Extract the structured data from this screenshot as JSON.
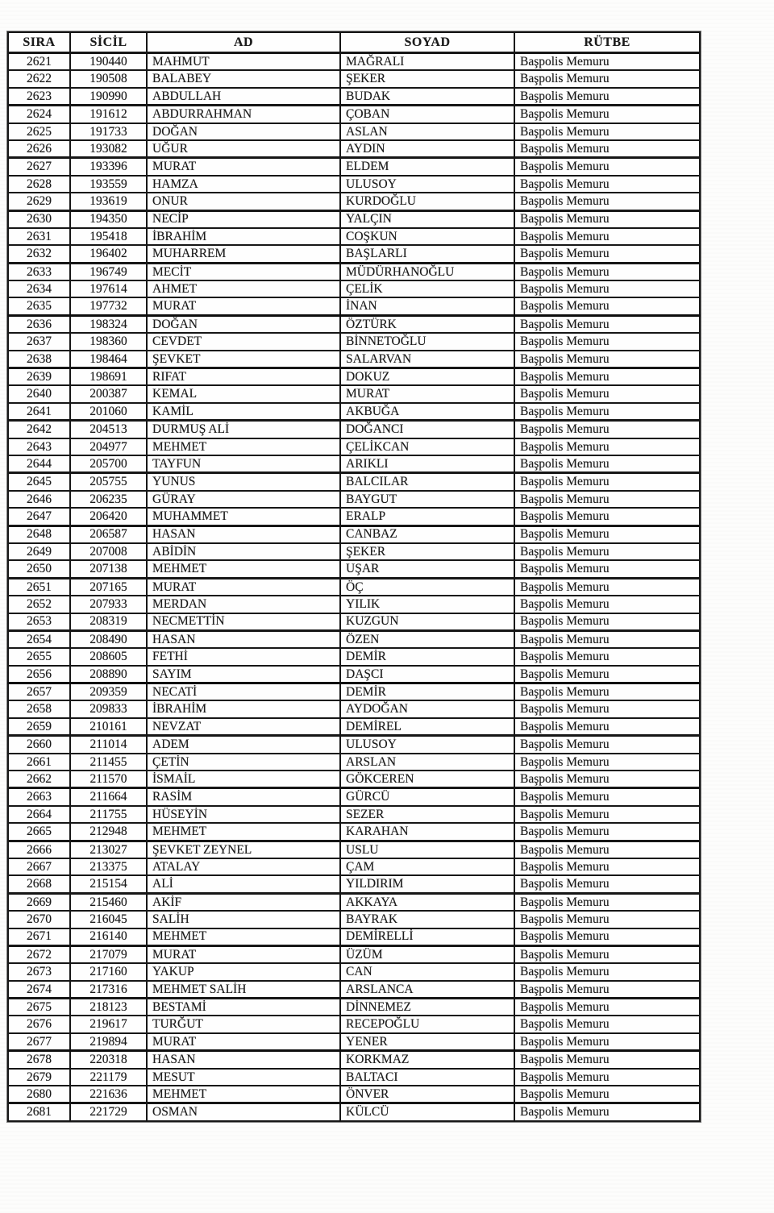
{
  "table": {
    "headers": [
      "SIRA",
      "SİCİL",
      "AD",
      "SOYAD",
      "RÜTBE"
    ],
    "column_keys": [
      "sira",
      "sicil",
      "ad",
      "soyad",
      "rutbe"
    ],
    "rows": [
      [
        "2621",
        "190440",
        "MAHMUT",
        "MAĞRALI",
        "Başpolis Memuru"
      ],
      [
        "2622",
        "190508",
        "BALABEY",
        "ŞEKER",
        "Başpolis Memuru"
      ],
      [
        "2623",
        "190990",
        "ABDULLAH",
        "BUDAK",
        "Başpolis Memuru"
      ],
      [
        "2624",
        "191612",
        "ABDURRAHMAN",
        "ÇOBAN",
        "Başpolis Memuru"
      ],
      [
        "2625",
        "191733",
        "DOĞAN",
        "ASLAN",
        "Başpolis Memuru"
      ],
      [
        "2626",
        "193082",
        "UĞUR",
        "AYDIN",
        "Başpolis Memuru"
      ],
      [
        "2627",
        "193396",
        "MURAT",
        "ELDEM",
        "Başpolis Memuru"
      ],
      [
        "2628",
        "193559",
        "HAMZA",
        "ULUSOY",
        "Başpolis Memuru"
      ],
      [
        "2629",
        "193619",
        "ONUR",
        "KURDOĞLU",
        "Başpolis Memuru"
      ],
      [
        "2630",
        "194350",
        "NECİP",
        "YALÇIN",
        "Başpolis Memuru"
      ],
      [
        "2631",
        "195418",
        "İBRAHİM",
        "COŞKUN",
        "Başpolis Memuru"
      ],
      [
        "2632",
        "196402",
        "MUHARREM",
        "BAŞLARLI",
        "Başpolis Memuru"
      ],
      [
        "2633",
        "196749",
        "MECİT",
        "MÜDÜRHANOĞLU",
        "Başpolis Memuru"
      ],
      [
        "2634",
        "197614",
        "AHMET",
        "ÇELİK",
        "Başpolis Memuru"
      ],
      [
        "2635",
        "197732",
        "MURAT",
        "İNAN",
        "Başpolis Memuru"
      ],
      [
        "2636",
        "198324",
        "DOĞAN",
        "ÖZTÜRK",
        "Başpolis Memuru"
      ],
      [
        "2637",
        "198360",
        "CEVDET",
        "BİNNETOĞLU",
        "Başpolis Memuru"
      ],
      [
        "2638",
        "198464",
        "ŞEVKET",
        "SALARVAN",
        "Başpolis Memuru"
      ],
      [
        "2639",
        "198691",
        "RIFAT",
        "DOKUZ",
        "Başpolis Memuru"
      ],
      [
        "2640",
        "200387",
        "KEMAL",
        "MURAT",
        "Başpolis Memuru"
      ],
      [
        "2641",
        "201060",
        "KAMİL",
        "AKBUĞA",
        "Başpolis Memuru"
      ],
      [
        "2642",
        "204513",
        "DURMUŞ ALİ",
        "DOĞANCI",
        "Başpolis Memuru"
      ],
      [
        "2643",
        "204977",
        "MEHMET",
        "ÇELİKCAN",
        "Başpolis Memuru"
      ],
      [
        "2644",
        "205700",
        "TAYFUN",
        "ARIKLI",
        "Başpolis Memuru"
      ],
      [
        "2645",
        "205755",
        "YUNUS",
        "BALCILAR",
        "Başpolis Memuru"
      ],
      [
        "2646",
        "206235",
        "GÜRAY",
        "BAYGUT",
        "Başpolis Memuru"
      ],
      [
        "2647",
        "206420",
        "MUHAMMET",
        "ERALP",
        "Başpolis Memuru"
      ],
      [
        "2648",
        "206587",
        "HASAN",
        "CANBAZ",
        "Başpolis Memuru"
      ],
      [
        "2649",
        "207008",
        "ABİDİN",
        "ŞEKER",
        "Başpolis Memuru"
      ],
      [
        "2650",
        "207138",
        "MEHMET",
        "UŞAR",
        "Başpolis Memuru"
      ],
      [
        "2651",
        "207165",
        "MURAT",
        "ÖÇ",
        "Başpolis Memuru"
      ],
      [
        "2652",
        "207933",
        "MERDAN",
        "YILIK",
        "Başpolis Memuru"
      ],
      [
        "2653",
        "208319",
        "NECMETTİN",
        "KUZGUN",
        "Başpolis Memuru"
      ],
      [
        "2654",
        "208490",
        "HASAN",
        "ÖZEN",
        "Başpolis Memuru"
      ],
      [
        "2655",
        "208605",
        "FETHİ",
        "DEMİR",
        "Başpolis Memuru"
      ],
      [
        "2656",
        "208890",
        "SAYIM",
        "DAŞCI",
        "Başpolis Memuru"
      ],
      [
        "2657",
        "209359",
        "NECATİ",
        "DEMİR",
        "Başpolis Memuru"
      ],
      [
        "2658",
        "209833",
        "İBRAHİM",
        "AYDOĞAN",
        "Başpolis Memuru"
      ],
      [
        "2659",
        "210161",
        "NEVZAT",
        "DEMİREL",
        "Başpolis Memuru"
      ],
      [
        "2660",
        "211014",
        "ADEM",
        "ULUSOY",
        "Başpolis Memuru"
      ],
      [
        "2661",
        "211455",
        "ÇETİN",
        "ARSLAN",
        "Başpolis Memuru"
      ],
      [
        "2662",
        "211570",
        "İSMAİL",
        "GÖKCEREN",
        "Başpolis Memuru"
      ],
      [
        "2663",
        "211664",
        "RASİM",
        "GÜRCÜ",
        "Başpolis Memuru"
      ],
      [
        "2664",
        "211755",
        "HÜSEYİN",
        "SEZER",
        "Başpolis Memuru"
      ],
      [
        "2665",
        "212948",
        "MEHMET",
        "KARAHAN",
        "Başpolis Memuru"
      ],
      [
        "2666",
        "213027",
        "ŞEVKET ZEYNEL",
        "USLU",
        "Başpolis Memuru"
      ],
      [
        "2667",
        "213375",
        "ATALAY",
        "ÇAM",
        "Başpolis Memuru"
      ],
      [
        "2668",
        "215154",
        "ALİ",
        "YILDIRIM",
        "Başpolis Memuru"
      ],
      [
        "2669",
        "215460",
        "AKİF",
        "AKKAYA",
        "Başpolis Memuru"
      ],
      [
        "2670",
        "216045",
        "SALİH",
        "BAYRAK",
        "Başpolis Memuru"
      ],
      [
        "2671",
        "216140",
        "MEHMET",
        "DEMİRELLİ",
        "Başpolis Memuru"
      ],
      [
        "2672",
        "217079",
        "MURAT",
        "ÜZÜM",
        "Başpolis Memuru"
      ],
      [
        "2673",
        "217160",
        "YAKUP",
        "CAN",
        "Başpolis Memuru"
      ],
      [
        "2674",
        "217316",
        "MEHMET SALİH",
        "ARSLANCA",
        "Başpolis Memuru"
      ],
      [
        "2675",
        "218123",
        "BESTAMİ",
        "DİNNEMEZ",
        "Başpolis Memuru"
      ],
      [
        "2676",
        "219617",
        "TURĞUT",
        "RECEPOĞLU",
        "Başpolis Memuru"
      ],
      [
        "2677",
        "219894",
        "MURAT",
        "YENER",
        "Başpolis Memuru"
      ],
      [
        "2678",
        "220318",
        "HASAN",
        "KORKMAZ",
        "Başpolis Memuru"
      ],
      [
        "2679",
        "221179",
        "MESUT",
        "BALTACI",
        "Başpolis Memuru"
      ],
      [
        "2680",
        "221636",
        "MEHMET",
        "ÖNVER",
        "Başpolis Memuru"
      ],
      [
        "2681",
        "221729",
        "OSMAN",
        "KÜLCÜ",
        "Başpolis Memuru"
      ]
    ]
  }
}
